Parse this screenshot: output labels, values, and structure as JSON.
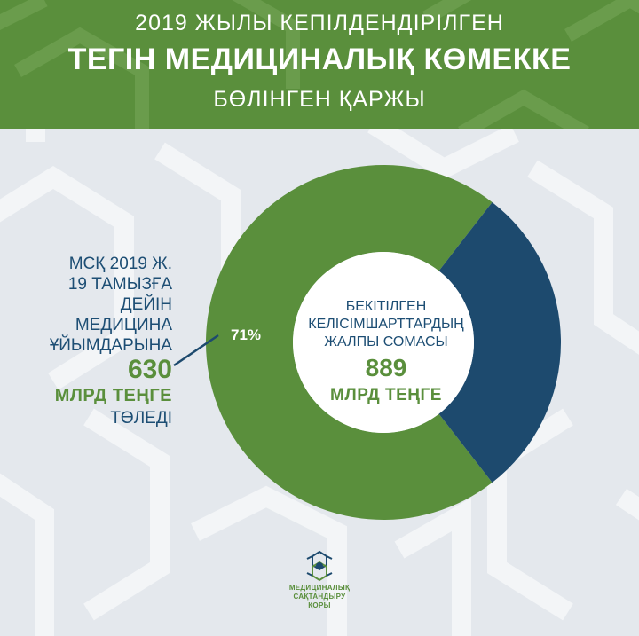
{
  "header": {
    "line1": "2019 ЖЫЛЫ КЕПІЛДЕНДІРІЛГЕН",
    "line2": "ТЕГІН МЕДИЦИНАЛЫҚ КӨМЕККЕ",
    "line3": "БӨЛІНГЕН ҚАРЖЫ"
  },
  "left_annotation": {
    "line1": "МСҚ 2019 Ж.",
    "line2": "19 ТАМЫЗҒА",
    "line3": "ДЕЙІН",
    "line4": "МЕДИЦИНА",
    "line5": "ҰЙЫМДАРЫНА",
    "value": "630",
    "unit": "МЛРД ТЕҢГЕ",
    "line_end": "ТӨЛЕДІ"
  },
  "center_label": {
    "line1": "БЕКІТІЛГЕН",
    "line2": "КЕЛІСІМШАРТТАРДЫҢ",
    "line3": "ЖАЛПЫ СОМАСЫ",
    "value": "889",
    "unit": "МЛРД ТЕҢГЕ"
  },
  "logo": {
    "line1": "МЕДИЦИНАЛЫҚ",
    "line2": "САҚТАНДЫРУ",
    "line3": "ҚОРЫ"
  },
  "chart_data": {
    "type": "pie",
    "donut": true,
    "slices": [
      {
        "value": 71,
        "label": "71%",
        "color": "#5a8f3c"
      },
      {
        "value": 29,
        "color": "#1d4a6e"
      }
    ]
  },
  "colors": {
    "green": "#5a8f3c",
    "navy": "#1d4a6e",
    "background": "#e4e8ed"
  }
}
